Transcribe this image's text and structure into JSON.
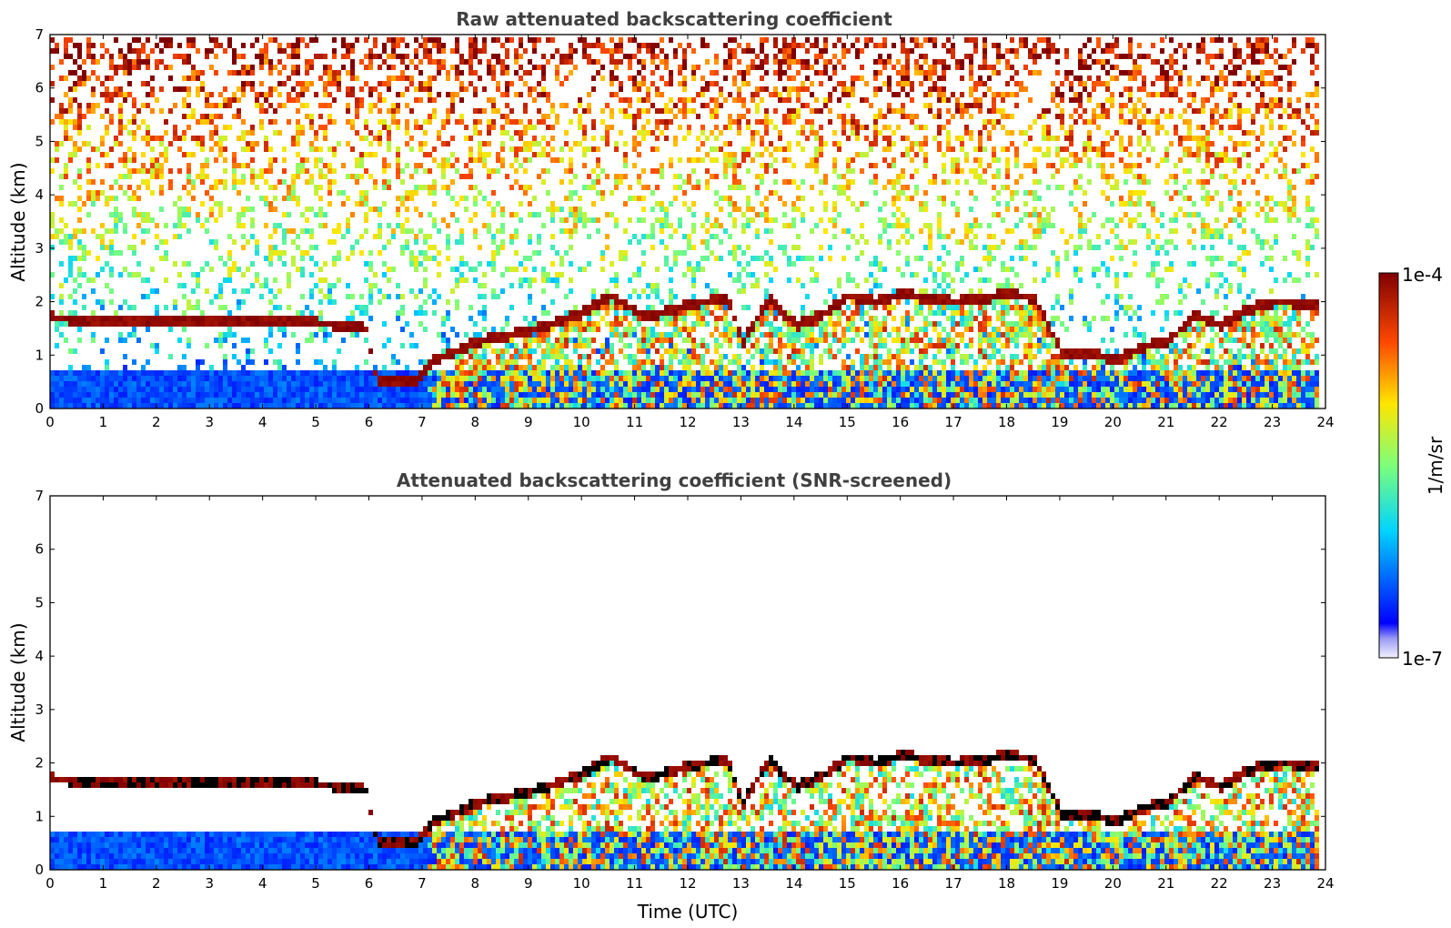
{
  "chart_data": [
    {
      "type": "heatmap",
      "title": "Raw attenuated backscattering coefficient",
      "xlabel": "",
      "ylabel": "Altitude (km)",
      "xlim": [
        0,
        24
      ],
      "ylim": [
        0,
        7
      ],
      "x_ticks": [
        "0",
        "1",
        "2",
        "3",
        "4",
        "5",
        "6",
        "7",
        "8",
        "9",
        "10",
        "11",
        "12",
        "13",
        "14",
        "15",
        "16",
        "17",
        "18",
        "19",
        "20",
        "21",
        "22",
        "23",
        "24"
      ],
      "y_ticks": [
        "0",
        "1",
        "2",
        "3",
        "4",
        "5",
        "6",
        "7"
      ],
      "data_extent_x": [
        0,
        23.85
      ],
      "screened": false,
      "cloud_layer": {
        "time": [
          0,
          0.6,
          1.2,
          1.4,
          3.8,
          5.0,
          5.9,
          6.1,
          6.8,
          7.2,
          8.0,
          9.0,
          10.0,
          10.5,
          11.2,
          12.0,
          12.7,
          13.0,
          13.5,
          14.0,
          14.5,
          15.0,
          15.5,
          16.0,
          16.5,
          17.0,
          17.5,
          18.0,
          18.5,
          19.0,
          19.5,
          20.0,
          20.5,
          21.0,
          21.5,
          22.0,
          22.5,
          23.0,
          23.85
        ],
        "top_km": [
          1.75,
          1.7,
          1.72,
          1.72,
          1.68,
          1.65,
          1.55,
          0.6,
          0.55,
          0.95,
          1.3,
          1.5,
          1.85,
          2.15,
          1.75,
          2.0,
          2.1,
          1.3,
          2.1,
          1.6,
          1.8,
          2.15,
          2.05,
          2.2,
          2.1,
          2.05,
          2.1,
          2.2,
          2.1,
          1.1,
          1.1,
          0.95,
          1.2,
          1.3,
          1.8,
          1.6,
          1.9,
          2.05,
          2.0
        ]
      },
      "boundary_layer_top_km": 0.75
    },
    {
      "type": "heatmap",
      "title": "Attenuated backscattering coefficient (SNR-screened)",
      "xlabel": "Time (UTC)",
      "ylabel": "Altitude (km)",
      "xlim": [
        0,
        24
      ],
      "ylim": [
        0,
        7
      ],
      "x_ticks": [
        "0",
        "1",
        "2",
        "3",
        "4",
        "5",
        "6",
        "7",
        "8",
        "9",
        "10",
        "11",
        "12",
        "13",
        "14",
        "15",
        "16",
        "17",
        "18",
        "19",
        "20",
        "21",
        "22",
        "23",
        "24"
      ],
      "y_ticks": [
        "0",
        "1",
        "2",
        "3",
        "4",
        "5",
        "6",
        "7"
      ],
      "data_extent_x": [
        0,
        23.85
      ],
      "screened": true
    }
  ],
  "colorbar": {
    "label": "1/m/sr",
    "max_label": "1e-4",
    "min_label": "1e-7",
    "scale": "log",
    "colormap": "jet",
    "min_color": "#f3f3fd",
    "max_color": "#7f0000"
  }
}
